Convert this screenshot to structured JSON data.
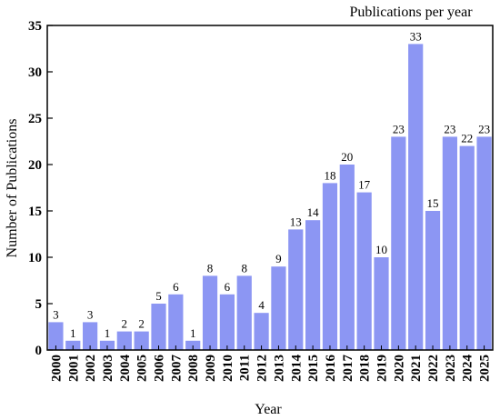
{
  "chart_data": {
    "type": "bar",
    "title": "Publications per year",
    "xlabel": "Year",
    "ylabel": "Number of Publications",
    "ylim": [
      0,
      35
    ],
    "yticks": [
      0,
      5,
      10,
      15,
      20,
      25,
      30,
      35
    ],
    "grid": false,
    "legend": "none",
    "bar_color": "#8c96f3",
    "categories": [
      "2000",
      "2001",
      "2002",
      "2003",
      "2004",
      "2005",
      "2006",
      "2007",
      "2008",
      "2009",
      "2010",
      "2011",
      "2012",
      "2013",
      "2014",
      "2015",
      "2016",
      "2017",
      "2018",
      "2019",
      "2020",
      "2021",
      "2022",
      "2023",
      "2024",
      "2025"
    ],
    "values": [
      3,
      1,
      3,
      1,
      2,
      2,
      5,
      6,
      1,
      8,
      6,
      8,
      4,
      9,
      13,
      14,
      18,
      20,
      17,
      10,
      23,
      33,
      15,
      23,
      22,
      23
    ]
  }
}
